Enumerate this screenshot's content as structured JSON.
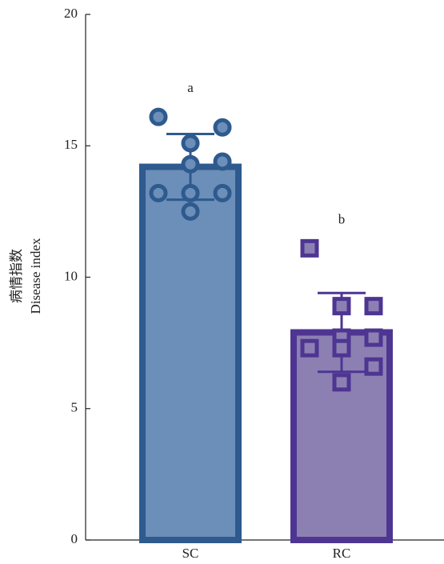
{
  "chart_data": {
    "type": "bar",
    "ylabel": [
      "病情指数",
      "Disease index"
    ],
    "categories": [
      "SC",
      "RC"
    ],
    "values": [
      14.2,
      7.9
    ],
    "errors": [
      1.25,
      1.5
    ],
    "annotations": [
      "a",
      "b"
    ],
    "colors": [
      "#6b8fb9",
      "#8c80b3"
    ],
    "edge_colors": [
      "#2e5a8e",
      "#4e3592"
    ],
    "markers": [
      "circle",
      "square"
    ],
    "points": [
      [
        16.1,
        15.7,
        15.1,
        14.3,
        14.4,
        13.2,
        13.2,
        13.2,
        12.5
      ],
      [
        11.1,
        8.9,
        8.9,
        7.7,
        7.7,
        7.3,
        7.3,
        6.6,
        6.0
      ]
    ],
    "ylim": [
      0,
      20
    ],
    "yticks": [
      0,
      5,
      10,
      15,
      20
    ]
  }
}
